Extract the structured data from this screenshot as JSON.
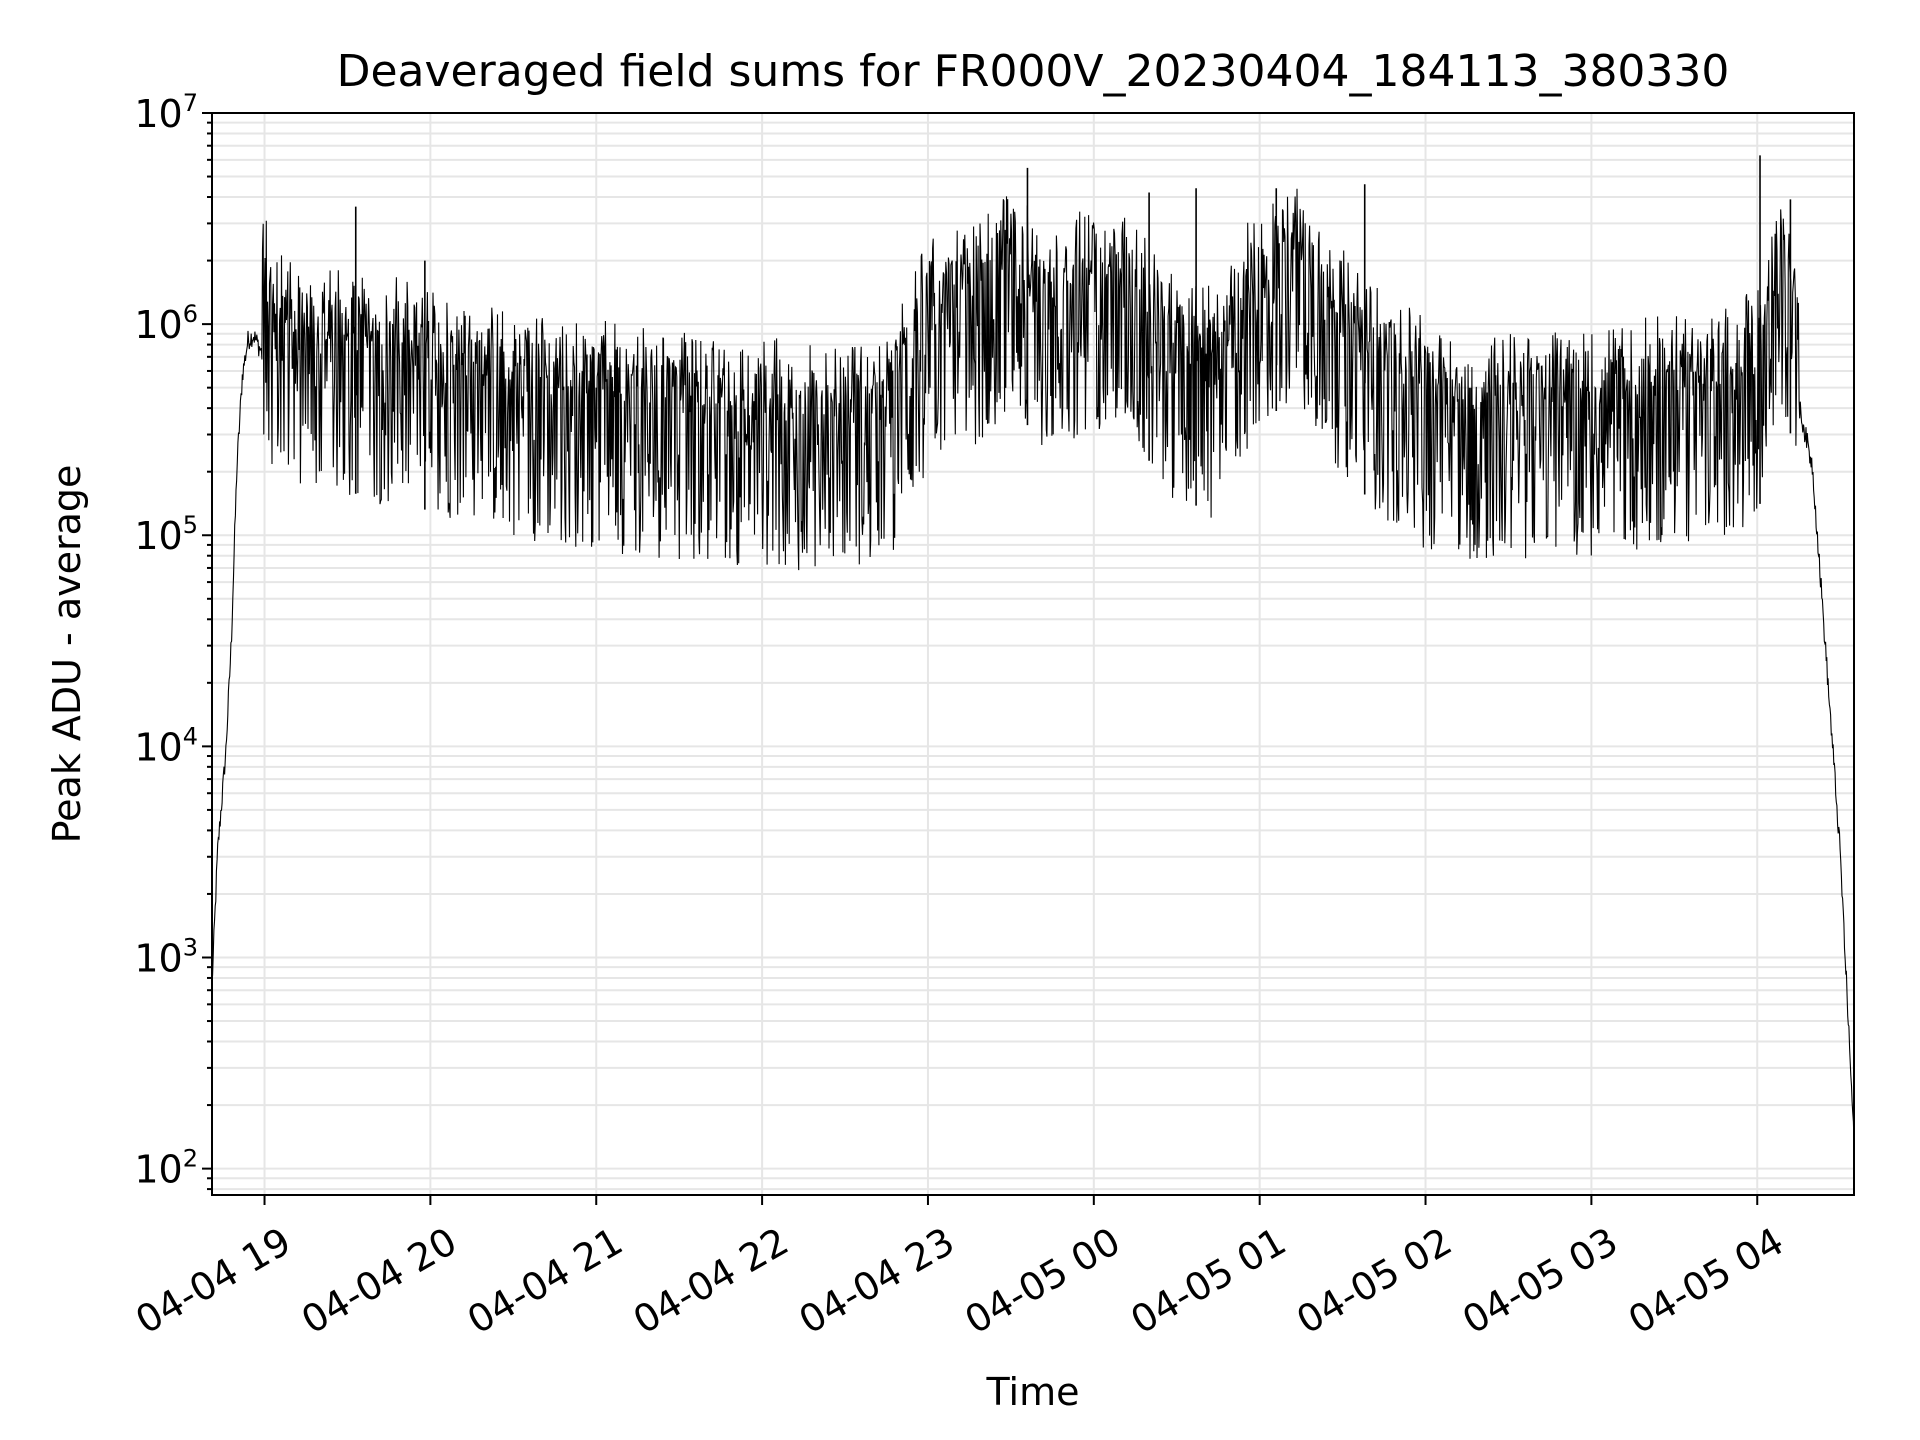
{
  "chart_data": {
    "type": "line",
    "title": "Deaveraged field sums for FR000V_20230404_184113_380330",
    "xlabel": "Time",
    "ylabel": "Peak ADU - average",
    "yscale": "log",
    "ylim": [
      75,
      10000000
    ],
    "xlim": [
      "04-04 18:41",
      "04-05 04:35"
    ],
    "x_ticks": [
      "04-04 19",
      "04-04 20",
      "04-04 21",
      "04-04 22",
      "04-04 23",
      "04-05 00",
      "04-05 01",
      "04-05 02",
      "04-05 03",
      "04-05 04"
    ],
    "y_ticks": [
      {
        "base": "10",
        "exp": "2",
        "value": 100
      },
      {
        "base": "10",
        "exp": "3",
        "value": 1000
      },
      {
        "base": "10",
        "exp": "4",
        "value": 10000
      },
      {
        "base": "10",
        "exp": "5",
        "value": 100000
      },
      {
        "base": "10",
        "exp": "6",
        "value": 1000000
      },
      {
        "base": "10",
        "exp": "7",
        "value": 10000000
      }
    ],
    "grid": true,
    "line_color": "#000000",
    "grid_color": "#e6e6e6",
    "series": [
      {
        "x": [
          "04-04 18:41",
          "04-04 18:43",
          "04-04 18:46",
          "04-04 18:48",
          "04-04 18:50",
          "04-04 18:52",
          "04-04 18:54",
          "04-04 18:56",
          "04-04 18:59",
          "04-04 19:01",
          "04-04 19:05",
          "04-04 19:10",
          "04-04 19:15",
          "04-04 19:20",
          "04-04 19:30",
          "04-04 19:40",
          "04-04 19:50",
          "04-04 20:00",
          "04-04 20:15",
          "04-04 20:30",
          "04-04 20:45",
          "04-04 21:00",
          "04-04 21:15",
          "04-04 21:30",
          "04-04 21:45",
          "04-04 22:00",
          "04-04 22:15",
          "04-04 22:30",
          "04-04 22:45",
          "04-04 23:00",
          "04-04 23:15",
          "04-04 23:30",
          "04-04 23:45",
          "04-05 00:00",
          "04-05 00:15",
          "04-05 00:30",
          "04-05 00:45",
          "04-05 01:00",
          "04-05 01:15",
          "04-05 01:30",
          "04-05 01:45",
          "04-05 02:00",
          "04-05 02:15",
          "04-05 02:30",
          "04-05 02:45",
          "04-05 03:00",
          "04-05 03:15",
          "04-05 03:30",
          "04-05 03:45",
          "04-05 04:00",
          "04-05 04:10",
          "04-05 04:20",
          "04-05 04:30",
          "04-05 04:35"
        ],
        "y": [
          700,
          3000,
          9000,
          30000,
          200000,
          550000,
          800000,
          850000,
          700000,
          500000,
          400000,
          350000,
          330000,
          320000,
          320000,
          300000,
          280000,
          260000,
          240000,
          210000,
          190000,
          180000,
          170000,
          160000,
          150000,
          150000,
          140000,
          150000,
          150000,
          450000,
          520000,
          800000,
          500000,
          700000,
          550000,
          300000,
          250000,
          700000,
          900000,
          400000,
          250000,
          180000,
          150000,
          160000,
          170000,
          170000,
          180000,
          190000,
          200000,
          250000,
          800000,
          200000,
          3000,
          130
        ]
      }
    ],
    "spikes": [
      {
        "x": "04-04 19:33",
        "y": 3600000
      },
      {
        "x": "04-04 19:58",
        "y": 2000000
      },
      {
        "x": "04-04 23:36",
        "y": 5500000
      },
      {
        "x": "04-05 00:20",
        "y": 4200000
      },
      {
        "x": "04-05 00:37",
        "y": 4400000
      },
      {
        "x": "04-05 01:06",
        "y": 4400000
      },
      {
        "x": "04-05 01:38",
        "y": 4600000
      },
      {
        "x": "04-05 04:01",
        "y": 6300000
      },
      {
        "x": "04-05 04:12",
        "y": 3900000
      }
    ]
  }
}
